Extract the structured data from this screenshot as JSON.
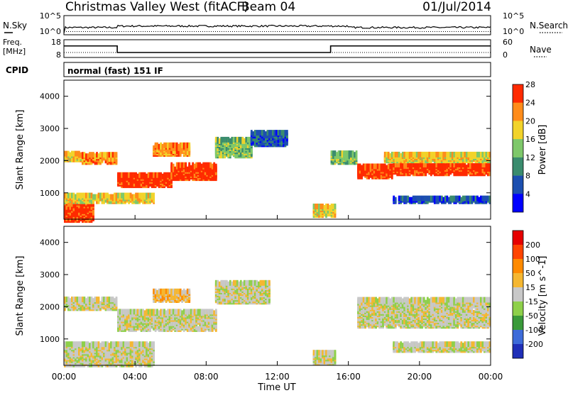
{
  "header": {
    "title": "Christmas Valley West (fitACF)",
    "beam": "Beam 04",
    "date": "01/Jul/2014"
  },
  "noise_panel": {
    "left_label": "N.Sky",
    "right_label": "N.Search",
    "left_ticks": [
      "10^5",
      "10^0"
    ],
    "right_ticks": [
      "10^5",
      "10^0"
    ]
  },
  "freq_panel": {
    "left_label_line1": "Freq.",
    "left_label_line2": "[MHz]",
    "right_label": "Nave",
    "left_ticks": [
      "18",
      "8"
    ],
    "right_ticks": [
      "60",
      "0"
    ],
    "freq_steps": [
      {
        "t": 0,
        "mhz": 14.5
      },
      {
        "t": 3.0,
        "mhz": 10.8
      },
      {
        "t": 15.0,
        "mhz": 14.5
      },
      {
        "t": 24,
        "mhz": 14.5
      }
    ]
  },
  "cpid_panel": {
    "label": "CPID",
    "value": "normal (fast) 151 IF"
  },
  "chart_data": [
    {
      "type": "heatmap",
      "name": "power",
      "ylabel": "Slant Range [km]",
      "yticks": [
        "1000",
        "2000",
        "3000",
        "4000"
      ],
      "ylim": [
        180,
        4500
      ],
      "xlim": [
        0,
        24
      ],
      "colorbar": {
        "label": "Power [dB]",
        "ticks": [
          "4",
          "8",
          "12",
          "16",
          "20",
          "24",
          "28"
        ],
        "colors": [
          "#0000ff",
          "#1c4fb0",
          "#3a8c6e",
          "#7ec86a",
          "#f2d32a",
          "#ff8c1a",
          "#ff2a00"
        ]
      },
      "bands": [
        {
          "t0": 0.0,
          "t1": 1.7,
          "r0": 200,
          "r1": 750,
          "level": 6
        },
        {
          "t0": 0.0,
          "t1": 5.0,
          "r0": 780,
          "r1": 980,
          "level": 4
        },
        {
          "t0": 0.0,
          "t1": 1.0,
          "r0": 2080,
          "r1": 2300,
          "level": 4
        },
        {
          "t0": 1.0,
          "t1": 3.0,
          "r0": 2000,
          "r1": 2250,
          "level": 5
        },
        {
          "t0": 3.0,
          "t1": 6.0,
          "r0": 1280,
          "r1": 1600,
          "level": 6
        },
        {
          "t0": 6.0,
          "t1": 8.5,
          "r0": 1500,
          "r1": 1950,
          "level": 6
        },
        {
          "t0": 5.0,
          "t1": 7.0,
          "r0": 2250,
          "r1": 2550,
          "level": 5
        },
        {
          "t0": 8.5,
          "t1": 10.5,
          "r0": 2200,
          "r1": 2700,
          "level": 3
        },
        {
          "t0": 10.5,
          "t1": 12.5,
          "r0": 2550,
          "r1": 2950,
          "level": 1
        },
        {
          "t0": 14.0,
          "t1": 15.2,
          "r0": 350,
          "r1": 650,
          "level": 4
        },
        {
          "t0": 15.0,
          "t1": 16.5,
          "r0": 2000,
          "r1": 2300,
          "level": 3
        },
        {
          "t0": 16.5,
          "t1": 18.5,
          "r0": 1550,
          "r1": 1900,
          "level": 6
        },
        {
          "t0": 18.5,
          "t1": 24.0,
          "r0": 1650,
          "r1": 1950,
          "level": 6
        },
        {
          "t0": 18.0,
          "t1": 24.0,
          "r0": 2050,
          "r1": 2250,
          "level": 4
        },
        {
          "t0": 18.5,
          "t1": 24.0,
          "r0": 780,
          "r1": 880,
          "level": 1
        }
      ]
    },
    {
      "type": "heatmap",
      "name": "velocity",
      "ylabel": "Slant Range [km]",
      "yticks": [
        "1000",
        "2000",
        "3000",
        "4000"
      ],
      "ylim": [
        180,
        4500
      ],
      "xlim": [
        0,
        24
      ],
      "xticks": [
        "00:00",
        "04:00",
        "08:00",
        "12:00",
        "16:00",
        "20:00",
        "00:00"
      ],
      "xlabel": "Time UT",
      "colorbar": {
        "label": "Velocity [m s^-1]",
        "ticks": [
          "200",
          "100",
          "50",
          "15",
          "-15",
          "-50",
          "-100",
          "-200"
        ],
        "colors": [
          "#1f2fb8",
          "#3d6bd9",
          "#3a9a3a",
          "#8ed04a",
          "#c8c8c8",
          "#f5b731",
          "#ff8a00",
          "#ff4400",
          "#e60000"
        ]
      },
      "bands": [
        {
          "t0": 0.0,
          "t1": 5.0,
          "r0": 250,
          "r1": 900,
          "level": 4
        },
        {
          "t0": 0.0,
          "t1": 3.0,
          "r0": 2000,
          "r1": 2300,
          "level": 4
        },
        {
          "t0": 3.0,
          "t1": 8.5,
          "r0": 1350,
          "r1": 1900,
          "level": 4
        },
        {
          "t0": 8.5,
          "t1": 11.5,
          "r0": 2200,
          "r1": 2800,
          "level": 4
        },
        {
          "t0": 5.0,
          "t1": 7.0,
          "r0": 2250,
          "r1": 2550,
          "level": 5
        },
        {
          "t0": 14.0,
          "t1": 15.2,
          "r0": 300,
          "r1": 650,
          "level": 4
        },
        {
          "t0": 16.5,
          "t1": 24.0,
          "r0": 1450,
          "r1": 2300,
          "level": 4
        },
        {
          "t0": 18.5,
          "t1": 24.0,
          "r0": 700,
          "r1": 900,
          "level": 4
        }
      ]
    }
  ]
}
